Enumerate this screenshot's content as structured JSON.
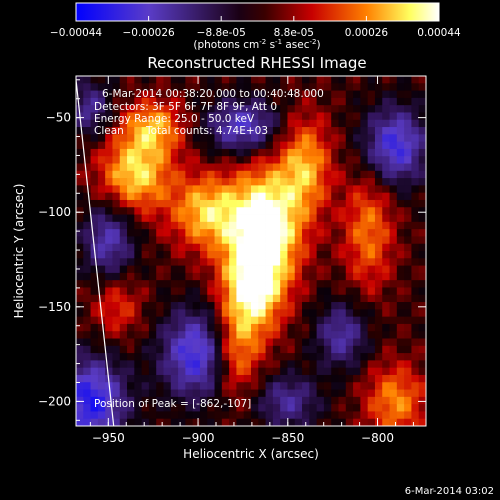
{
  "chart_data": {
    "type": "heatmap",
    "title": "Reconstructed RHESSI Image",
    "xlabel": "Heliocentric X (arcsec)",
    "ylabel": "Heliocentric Y (arcsec)",
    "xlim": [
      -968,
      -773
    ],
    "ylim": [
      -213,
      -28
    ],
    "xticks": [
      -950,
      -900,
      -850,
      -800
    ],
    "yticks": [
      -200,
      -150,
      -100,
      -50
    ],
    "colorbar": {
      "colormap": "rhessi-blue-purple-red-yellow-white",
      "range": [
        -0.00044,
        0.00044
      ],
      "ticks": [
        "-0.00044",
        "-0.00026",
        "-8.8e-05",
        "8.8e-05",
        "0.00026",
        "0.00044"
      ],
      "unit_prefix": "(photons cm",
      "unit_exp1": "-2",
      "unit_mid": " s",
      "unit_exp2": "-1",
      "unit_mid2": " asec",
      "unit_exp3": "-2",
      "unit_suffix": ")"
    },
    "annotations": {
      "time_range": "6-Mar-2014 00:38:20.000 to 00:40:48.000",
      "detectors": "Detectors: 3F 5F 6F 7F 8F 9F, Att 0",
      "energy": "Energy Range: 25.0 - 50.0 keV",
      "clean_label": "Clean",
      "counts": "Total counts: 4.74E+03",
      "peak": "Position of Peak = [-862,-107]"
    },
    "peak_position": [
      -862,
      -107
    ],
    "limb_line": [
      [
        -968,
        -30
      ],
      [
        -947,
        -213
      ]
    ],
    "sources": [
      {
        "x": -862,
        "y": -107,
        "intensity": 1.0,
        "sx": 14,
        "sy": 22
      },
      {
        "x": -870,
        "y": -140,
        "intensity": 0.85,
        "sx": 12,
        "sy": 18
      },
      {
        "x": -880,
        "y": -175,
        "intensity": 0.6,
        "sx": 10,
        "sy": 16
      },
      {
        "x": -895,
        "y": -100,
        "intensity": 0.7,
        "sx": 14,
        "sy": 14
      },
      {
        "x": -935,
        "y": -80,
        "intensity": 0.75,
        "sx": 14,
        "sy": 14
      },
      {
        "x": -925,
        "y": -55,
        "intensity": 0.6,
        "sx": 12,
        "sy": 10
      },
      {
        "x": -840,
        "y": -75,
        "intensity": 0.6,
        "sx": 10,
        "sy": 18
      },
      {
        "x": -805,
        "y": -110,
        "intensity": 0.5,
        "sx": 10,
        "sy": 22
      },
      {
        "x": -790,
        "y": -200,
        "intensity": 0.55,
        "sx": 12,
        "sy": 14
      },
      {
        "x": -945,
        "y": -150,
        "intensity": 0.35,
        "sx": 10,
        "sy": 12
      },
      {
        "x": -960,
        "y": -200,
        "intensity": -0.9,
        "sx": 14,
        "sy": 16
      },
      {
        "x": -900,
        "y": -175,
        "intensity": -0.85,
        "sx": 14,
        "sy": 16
      },
      {
        "x": -790,
        "y": -65,
        "intensity": -0.8,
        "sx": 12,
        "sy": 14
      },
      {
        "x": -875,
        "y": -55,
        "intensity": -0.7,
        "sx": 14,
        "sy": 10
      },
      {
        "x": -950,
        "y": -115,
        "intensity": -0.6,
        "sx": 10,
        "sy": 14
      },
      {
        "x": -820,
        "y": -165,
        "intensity": -0.55,
        "sx": 10,
        "sy": 12
      },
      {
        "x": -850,
        "y": -200,
        "intensity": -0.5,
        "sx": 12,
        "sy": 10
      },
      {
        "x": -960,
        "y": -45,
        "intensity": -0.5,
        "sx": 8,
        "sy": 10
      }
    ]
  },
  "footer": {
    "timestamp": "6-Mar-2014 03:02"
  }
}
